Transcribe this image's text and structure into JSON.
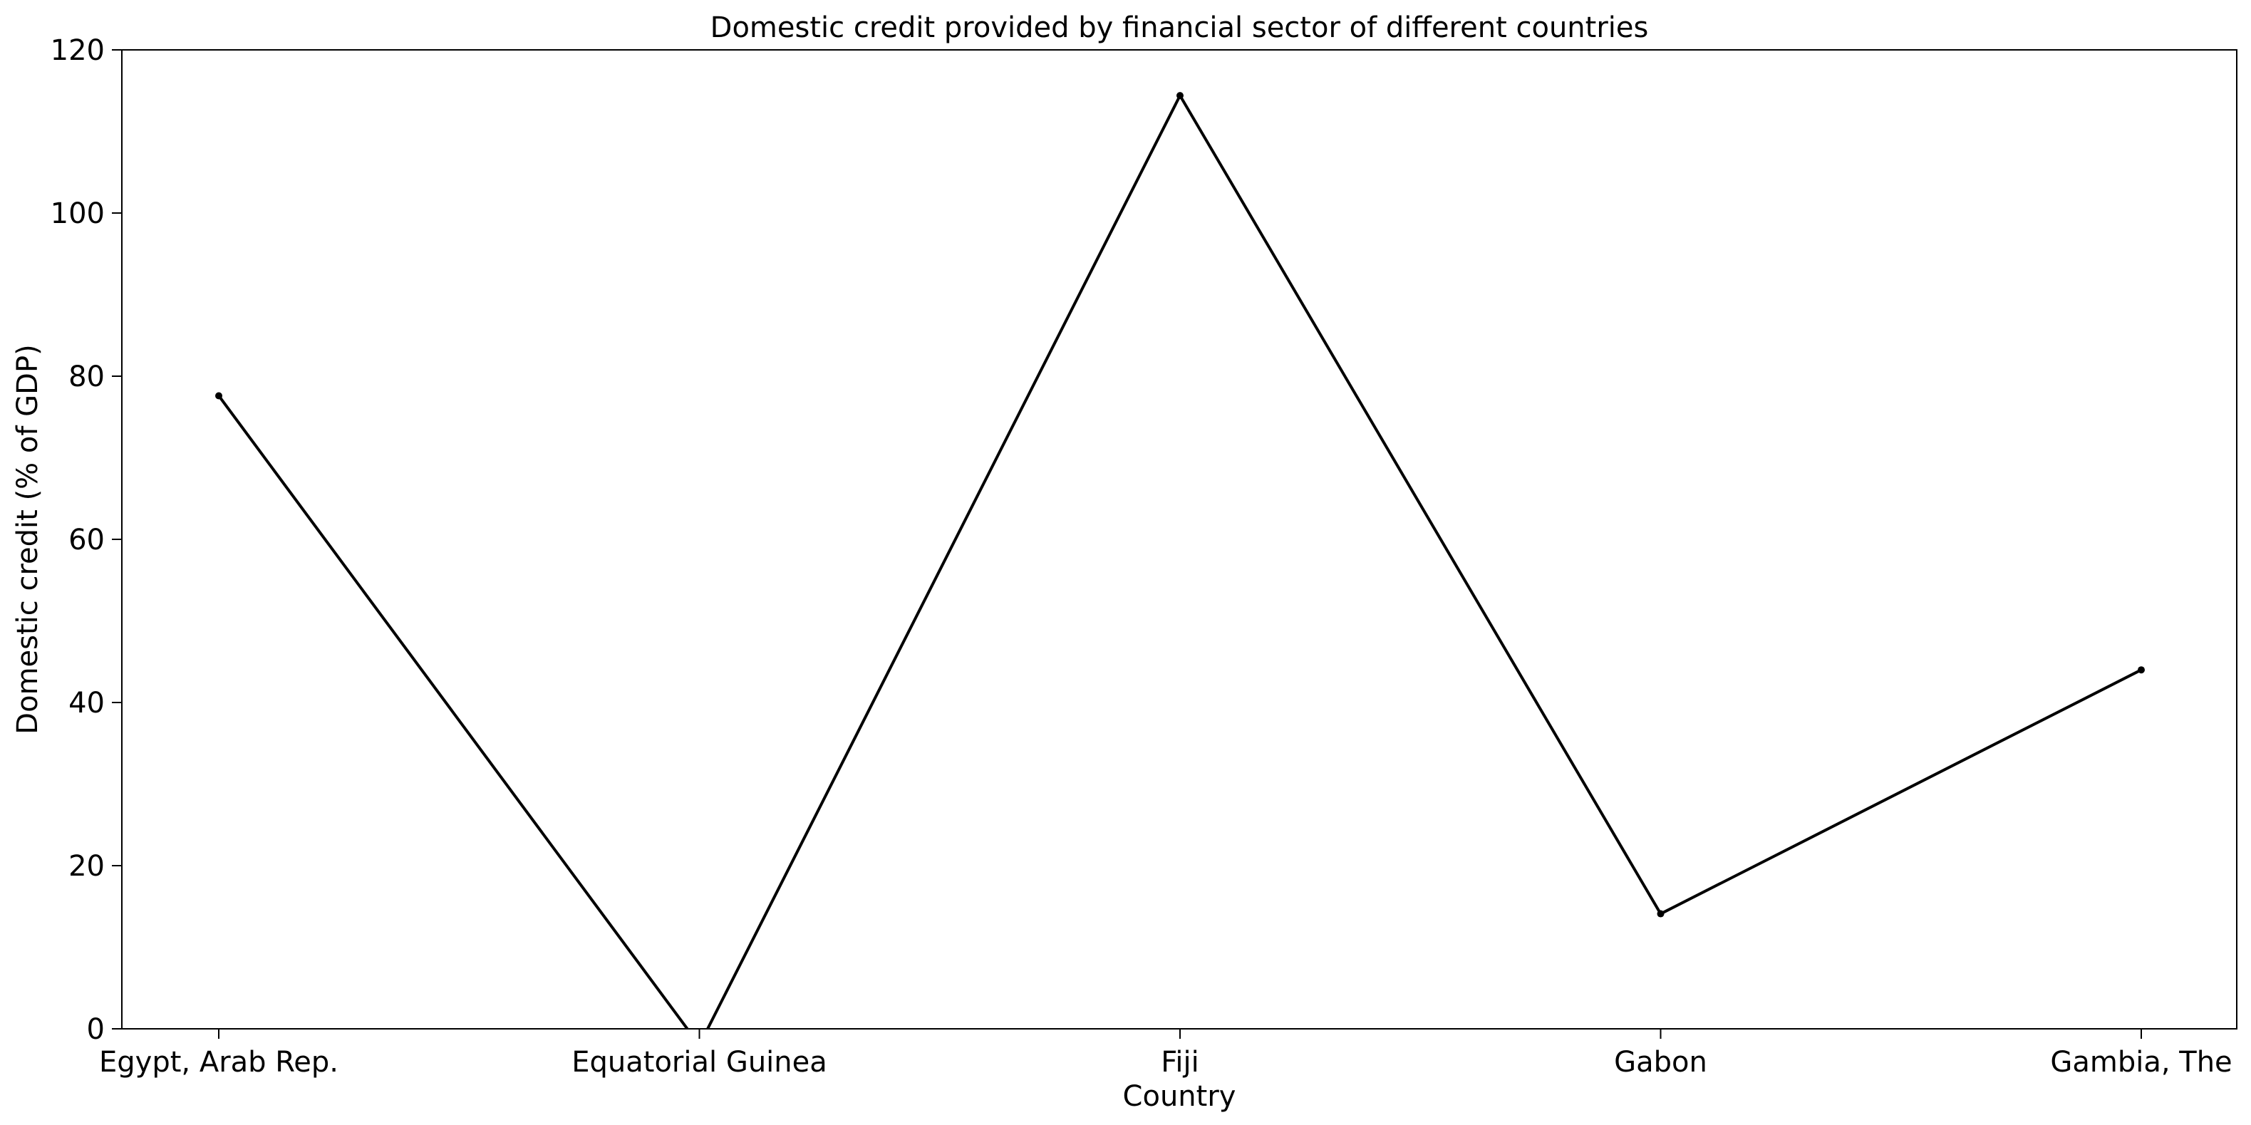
{
  "chart_data": {
    "type": "line",
    "title": "Domestic credit provided by financial sector of different countries",
    "xlabel": "Country",
    "ylabel": "Domestic credit (% of GDP)",
    "categories": [
      "Egypt, Arab Rep.",
      "Equatorial Guinea",
      "Fiji",
      "Gabon",
      "Gambia, The"
    ],
    "series": [
      {
        "values": [
          77.6,
          -2.0,
          114.4,
          14.1,
          44.0
        ]
      }
    ],
    "ylim": [
      0,
      120
    ],
    "yticks": [
      0,
      20,
      40,
      60,
      80,
      100,
      120
    ],
    "grid": false,
    "color": "#000000"
  }
}
